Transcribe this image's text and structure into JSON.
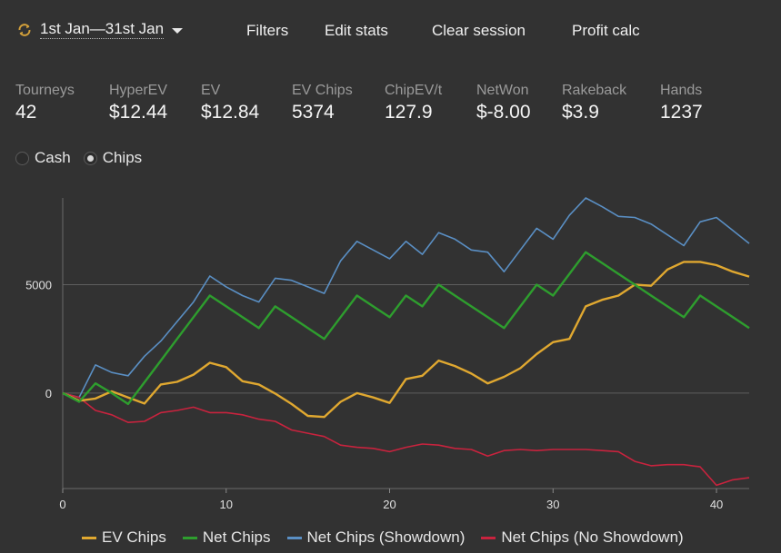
{
  "header": {
    "date_range": "1st Jan—31st Jan",
    "filters": "Filters",
    "edit_stats": "Edit stats",
    "clear_session": "Clear session",
    "profit_calc": "Profit calc"
  },
  "stats": [
    {
      "name": "Tourneys",
      "value": "42"
    },
    {
      "name": "HyperEV",
      "value": "$12.44"
    },
    {
      "name": "EV",
      "value": "$12.84"
    },
    {
      "name": "EV Chips",
      "value": "5374"
    },
    {
      "name": "ChipEV/t",
      "value": "127.9"
    },
    {
      "name": "NetWon",
      "value": "$-8.00"
    },
    {
      "name": "Rakeback",
      "value": "$3.9"
    },
    {
      "name": "Hands",
      "value": "1237"
    }
  ],
  "mode": {
    "cash_label": "Cash",
    "chips_label": "Chips",
    "selected": "chips"
  },
  "chart_data": {
    "type": "line",
    "x": [
      0,
      1,
      2,
      3,
      4,
      5,
      6,
      7,
      8,
      9,
      10,
      11,
      12,
      13,
      14,
      15,
      16,
      17,
      18,
      19,
      20,
      21,
      22,
      23,
      24,
      25,
      26,
      27,
      28,
      29,
      30,
      31,
      32,
      33,
      34,
      35,
      36,
      37,
      38,
      39,
      40,
      41,
      42
    ],
    "xticks": [
      0,
      10,
      20,
      30,
      40
    ],
    "yticks": [
      0,
      5000
    ],
    "xlim": [
      0,
      42
    ],
    "ylim": [
      -4400,
      9000
    ],
    "grid": "horizontal",
    "legend_position": "bottom",
    "series": [
      {
        "name": "EV Chips",
        "color": "#e0a830",
        "values": [
          0,
          -350,
          -250,
          80,
          -200,
          -480,
          400,
          520,
          850,
          1400,
          1200,
          550,
          400,
          -20,
          -500,
          -1050,
          -1100,
          -400,
          0,
          -200,
          -450,
          650,
          800,
          1500,
          1250,
          900,
          450,
          750,
          1150,
          1800,
          2350,
          2500,
          4000,
          4300,
          4500,
          5000,
          4950,
          5700,
          6050,
          6050,
          5900,
          5600,
          5374
        ]
      },
      {
        "name": "Net Chips",
        "color": "#2e9e2e",
        "values": [
          0,
          -400,
          450,
          0,
          -500,
          500,
          1500,
          2500,
          3500,
          4500,
          4000,
          3500,
          3000,
          4000,
          3500,
          3000,
          2500,
          3500,
          4500,
          4000,
          3500,
          4500,
          4000,
          5000,
          4500,
          4000,
          3500,
          3000,
          4000,
          5000,
          4500,
          5500,
          6500,
          6000,
          5500,
          5000,
          4500,
          4000,
          3500,
          4500,
          4000,
          3500,
          3000
        ]
      },
      {
        "name": "Net Chips (Showdown)",
        "color": "#5a8fc4",
        "values": [
          0,
          -200,
          1300,
          950,
          800,
          1700,
          2400,
          3300,
          4200,
          5400,
          4900,
          4500,
          4200,
          5300,
          5200,
          4900,
          4600,
          6100,
          7000,
          6600,
          6200,
          7000,
          6400,
          7400,
          7100,
          6600,
          6500,
          5600,
          6600,
          7600,
          7100,
          8200,
          9000,
          8600,
          8150,
          8100,
          7800,
          7300,
          6800,
          7900,
          8100,
          7500,
          6900
        ]
      },
      {
        "name": "Net Chips (No Showdown)",
        "color": "#c8233e",
        "values": [
          0,
          -200,
          -800,
          -1000,
          -1350,
          -1300,
          -900,
          -800,
          -650,
          -900,
          -900,
          -1000,
          -1200,
          -1300,
          -1700,
          -1850,
          -2000,
          -2400,
          -2500,
          -2550,
          -2700,
          -2500,
          -2350,
          -2400,
          -2550,
          -2600,
          -2900,
          -2650,
          -2600,
          -2650,
          -2600,
          -2600,
          -2600,
          -2650,
          -2700,
          -3150,
          -3350,
          -3300,
          -3300,
          -3400,
          -4250,
          -4000,
          -3900
        ]
      }
    ]
  }
}
